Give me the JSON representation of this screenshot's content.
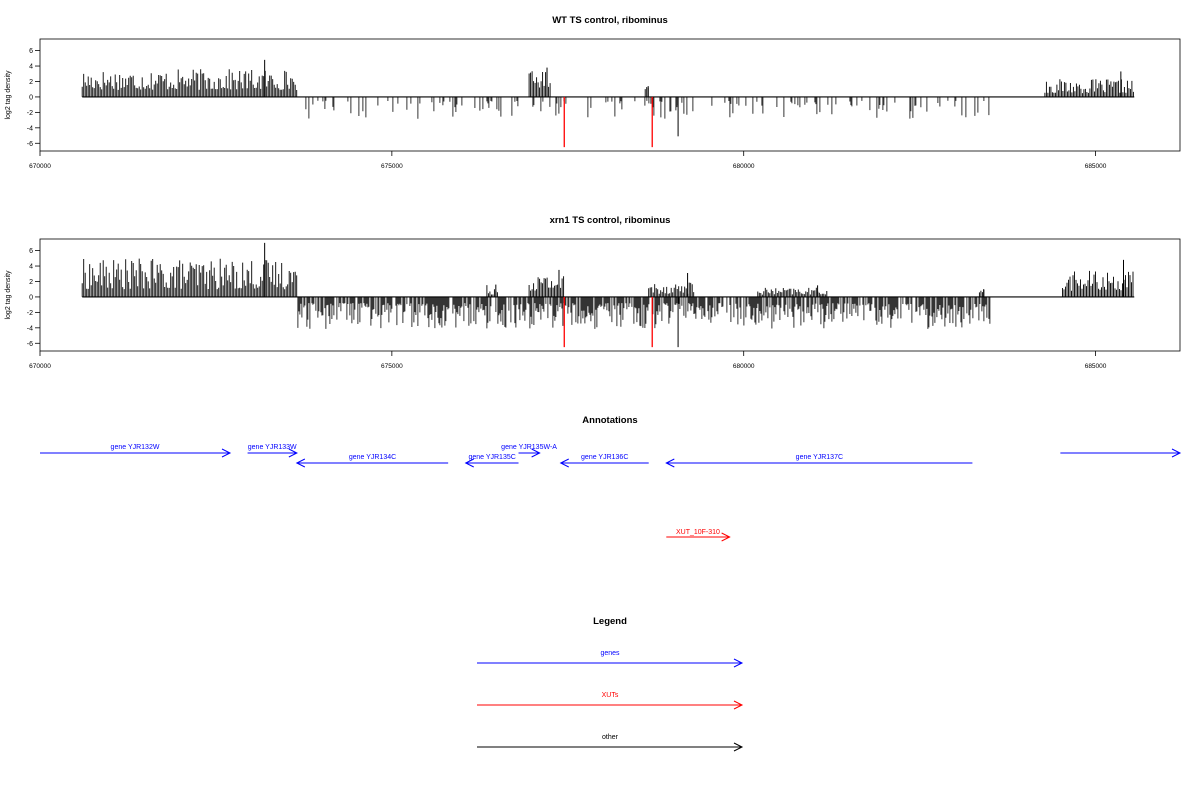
{
  "chart_data": [
    {
      "type": "bar",
      "title": "WT TS control, ribominus",
      "ylabel": "log2 tag density",
      "xlabel": "",
      "xlim": [
        670000,
        686200
      ],
      "ylim": [
        -7,
        7.5
      ],
      "xticks": [
        670000,
        675000,
        680000,
        685000
      ],
      "yticks": [
        -6,
        -4,
        -2,
        0,
        2,
        4,
        6
      ],
      "baseline": [
        670600,
        685550
      ],
      "plus_regions": [
        {
          "start": 670600,
          "end": 673650,
          "lo": 0.9,
          "hi": 3.6,
          "peak": 4.8
        },
        {
          "start": 676950,
          "end": 677250,
          "lo": 1.2,
          "hi": 3.4,
          "peak": 3.8
        },
        {
          "start": 678600,
          "end": 678650,
          "lo": 1.0,
          "hi": 1.4,
          "peak": 1.4
        },
        {
          "start": 684280,
          "end": 685550,
          "lo": 0.5,
          "hi": 2.3,
          "peak": 3.3
        }
      ],
      "minus_regions": [
        {
          "start": 673650,
          "end": 683500,
          "lo": 0.5,
          "hi": 2.9,
          "peak": 5.1,
          "density": 0.22
        }
      ],
      "red_markers": [
        {
          "x": 677450,
          "value": -6.5
        },
        {
          "x": 678700,
          "value": -6.5
        }
      ],
      "marker_color": "#ff0000",
      "bar_color": "#000000"
    },
    {
      "type": "bar",
      "title": "xrn1 TS control, ribominus",
      "ylabel": "log2 tag density",
      "xlabel": "",
      "xlim": [
        670000,
        686200
      ],
      "ylim": [
        -7,
        7.5
      ],
      "xticks": [
        670000,
        675000,
        680000,
        685000
      ],
      "yticks": [
        -6,
        -4,
        -2,
        0,
        2,
        4,
        6
      ],
      "baseline": [
        670600,
        685550
      ],
      "plus_regions": [
        {
          "start": 670600,
          "end": 673650,
          "lo": 1.0,
          "hi": 5.0,
          "peak": 7.0
        },
        {
          "start": 676350,
          "end": 676500,
          "lo": 0.3,
          "hi": 1.6,
          "peak": 1.6
        },
        {
          "start": 676950,
          "end": 677450,
          "lo": 0.8,
          "hi": 3.0,
          "peak": 3.5
        },
        {
          "start": 678650,
          "end": 679300,
          "lo": 0.4,
          "hi": 2.0,
          "peak": 3.1
        },
        {
          "start": 680200,
          "end": 681200,
          "lo": 0.3,
          "hi": 1.2,
          "peak": 1.5
        },
        {
          "start": 683350,
          "end": 683420,
          "lo": 0.4,
          "hi": 1.0,
          "peak": 1.0
        },
        {
          "start": 684530,
          "end": 685550,
          "lo": 0.8,
          "hi": 3.4,
          "peak": 4.8
        }
      ],
      "minus_regions": [
        {
          "start": 673650,
          "end": 683500,
          "lo": 0.8,
          "hi": 4.2,
          "peak": 6.5,
          "density": 0.75
        }
      ],
      "red_markers": [
        {
          "x": 677450,
          "value": -6.5
        },
        {
          "x": 678700,
          "value": -6.5
        }
      ],
      "marker_color": "#ff0000",
      "bar_color": "#000000"
    }
  ],
  "annotations": {
    "title": "Annotations",
    "genes": [
      {
        "label": "gene YJR132W",
        "start": 670000,
        "end": 672700,
        "strand": "+",
        "row": 0
      },
      {
        "label": "gene YJR133W",
        "start": 672950,
        "end": 673650,
        "strand": "+",
        "row": 0
      },
      {
        "label": "gene YJR134C",
        "start": 673650,
        "end": 675800,
        "strand": "-",
        "row": 1
      },
      {
        "label": "gene YJR135C",
        "start": 676050,
        "end": 676800,
        "strand": "-",
        "row": 1
      },
      {
        "label": "gene YJR135W-A",
        "start": 676800,
        "end": 677100,
        "strand": "+",
        "row": 0
      },
      {
        "label": "gene YJR136C",
        "start": 677400,
        "end": 678650,
        "strand": "-",
        "row": 1
      },
      {
        "label": "gene YJR137C",
        "start": 678900,
        "end": 683250,
        "strand": "-",
        "row": 1
      },
      {
        "label": "",
        "start": 684500,
        "end": 686200,
        "strand": "+",
        "row": 0
      }
    ],
    "xuts": [
      {
        "label": "XUT_10F-310",
        "start": 678900,
        "end": 679800,
        "strand": "+"
      }
    ],
    "gene_color": "#0000ff",
    "xut_color": "#ff0000"
  },
  "legend": {
    "title": "Legend",
    "items": [
      {
        "label": "genes",
        "color": "#0000ff"
      },
      {
        "label": "XUTs",
        "color": "#ff0000"
      },
      {
        "label": "other",
        "color": "#000000"
      }
    ]
  }
}
